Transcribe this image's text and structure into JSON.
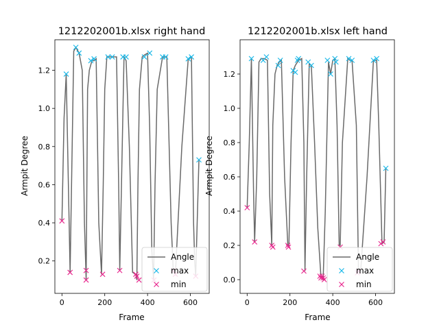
{
  "chart_data": [
    {
      "type": "line",
      "title": "1212202001b.xlsx right hand",
      "xlabel": "Frame",
      "ylabel": "Armpit Degree",
      "xlim": [
        -33,
        688
      ],
      "ylim": [
        0.03,
        1.36
      ],
      "xticks": [
        0,
        200,
        400,
        600
      ],
      "yticks": [
        0.2,
        0.4,
        0.6,
        0.8,
        1.0,
        1.2
      ],
      "ytick_labels": [
        "0.2",
        "0.4",
        "0.6",
        "0.8",
        "1.0",
        "1.2"
      ],
      "legend": {
        "position": "bottom-right",
        "entries": [
          "Angle",
          "max",
          "min"
        ]
      },
      "colors": {
        "angle": "#696969",
        "max": "#1ab8e8",
        "min": "#e8288e"
      },
      "series": [
        {
          "name": "Angle",
          "x": [
            0,
            10,
            20,
            30,
            38,
            45,
            55,
            65,
            80,
            95,
            105,
            113,
            120,
            128,
            140,
            150,
            160,
            172,
            185,
            193,
            200,
            210,
            220,
            235,
            255,
            265,
            270,
            278,
            290,
            300,
            315,
            330,
            345,
            350,
            355,
            362,
            375,
            385,
            400,
            410,
            420,
            428,
            435,
            445,
            470,
            480,
            490,
            510,
            520,
            530,
            560,
            590,
            605,
            615,
            620,
            625,
            640
          ],
          "y": [
            0.41,
            0.95,
            1.18,
            0.6,
            0.14,
            0.6,
            1.3,
            1.32,
            1.29,
            1.2,
            0.4,
            0.1,
            1.1,
            1.2,
            1.25,
            1.25,
            1.26,
            0.4,
            0.13,
            0.6,
            1.1,
            1.27,
            1.27,
            1.27,
            1.27,
            0.6,
            0.15,
            0.6,
            1.27,
            1.25,
            0.8,
            0.14,
            0.13,
            0.1,
            0.6,
            1.1,
            1.27,
            1.28,
            1.29,
            0.9,
            0.25,
            0.1,
            0.6,
            1.1,
            1.27,
            1.27,
            1.27,
            0.4,
            0.15,
            0.13,
            0.8,
            1.26,
            1.27,
            0.4,
            0.2,
            0.12,
            0.73
          ]
        },
        {
          "name": "max",
          "x": [
            20,
            65,
            80,
            135,
            150,
            215,
            235,
            285,
            300,
            385,
            410,
            470,
            485,
            590,
            605,
            640
          ],
          "y": [
            1.18,
            1.32,
            1.29,
            1.25,
            1.26,
            1.27,
            1.27,
            1.27,
            1.27,
            1.27,
            1.29,
            1.27,
            1.27,
            1.26,
            1.27,
            0.73
          ]
        },
        {
          "name": "min",
          "x": [
            0,
            38,
            113,
            113,
            190,
            270,
            345,
            350,
            360,
            430,
            520,
            530,
            625
          ],
          "y": [
            0.41,
            0.14,
            0.15,
            0.1,
            0.13,
            0.15,
            0.13,
            0.12,
            0.1,
            0.1,
            0.15,
            0.13,
            0.12
          ]
        }
      ]
    },
    {
      "type": "line",
      "title": "1212202001b.xlsx left hand",
      "xlabel": "Frame",
      "ylabel": "Armpit Degree",
      "xlim": [
        -33,
        688
      ],
      "ylim": [
        -0.08,
        1.4
      ],
      "xticks": [
        0,
        200,
        400,
        600
      ],
      "yticks": [
        0.0,
        0.2,
        0.4,
        0.6,
        0.8,
        1.0,
        1.2
      ],
      "ytick_labels": [
        "0.0",
        "0.2",
        "0.4",
        "0.6",
        "0.8",
        "1.0",
        "1.2"
      ],
      "legend": {
        "position": "bottom-right",
        "entries": [
          "Angle",
          "max",
          "min"
        ]
      },
      "colors": {
        "angle": "#696969",
        "max": "#1ab8e8",
        "min": "#e8288e"
      },
      "series": [
        {
          "name": "Angle",
          "x": [
            0,
            10,
            20,
            30,
            35,
            45,
            55,
            65,
            80,
            95,
            105,
            115,
            120,
            130,
            140,
            150,
            160,
            175,
            190,
            195,
            205,
            215,
            225,
            240,
            255,
            265,
            270,
            278,
            290,
            300,
            315,
            330,
            345,
            350,
            355,
            365,
            380,
            390,
            400,
            410,
            420,
            430,
            435,
            445,
            470,
            480,
            490,
            510,
            520,
            530,
            560,
            590,
            605,
            615,
            630,
            640,
            648
          ],
          "y": [
            0.42,
            0.8,
            1.29,
            0.5,
            0.22,
            0.6,
            1.27,
            1.29,
            1.29,
            1.28,
            0.5,
            0.2,
            0.9,
            1.2,
            1.25,
            1.27,
            1.28,
            0.6,
            0.2,
            0.2,
            0.8,
            1.22,
            1.25,
            1.28,
            1.29,
            0.8,
            0.05,
            0.6,
            1.26,
            1.25,
            0.8,
            0.3,
            0.01,
            0.01,
            0.0,
            0.4,
            1.27,
            1.2,
            1.28,
            1.29,
            0.9,
            0.2,
            0.2,
            0.8,
            1.29,
            1.28,
            1.28,
            0.9,
            0.05,
            0.04,
            0.6,
            1.28,
            1.28,
            0.9,
            0.21,
            0.22,
            0.65
          ]
        },
        {
          "name": "max",
          "x": [
            20,
            75,
            90,
            145,
            155,
            215,
            225,
            235,
            240,
            285,
            300,
            375,
            390,
            410,
            415,
            475,
            490,
            590,
            605,
            648
          ],
          "y": [
            1.29,
            1.28,
            1.3,
            1.25,
            1.28,
            1.22,
            1.21,
            1.28,
            1.29,
            1.27,
            1.25,
            1.28,
            1.2,
            1.29,
            1.27,
            1.29,
            1.28,
            1.28,
            1.29,
            0.65
          ],
          "note": ""
        },
        {
          "name": "min",
          "x": [
            0,
            35,
            115,
            120,
            190,
            193,
            265,
            340,
            345,
            350,
            355,
            360,
            435,
            515,
            520,
            625,
            635
          ],
          "y": [
            0.42,
            0.22,
            0.2,
            0.19,
            0.2,
            0.19,
            0.05,
            0.02,
            0.01,
            0.02,
            0.01,
            0.0,
            0.19,
            0.04,
            0.05,
            0.21,
            0.22
          ]
        }
      ]
    }
  ]
}
